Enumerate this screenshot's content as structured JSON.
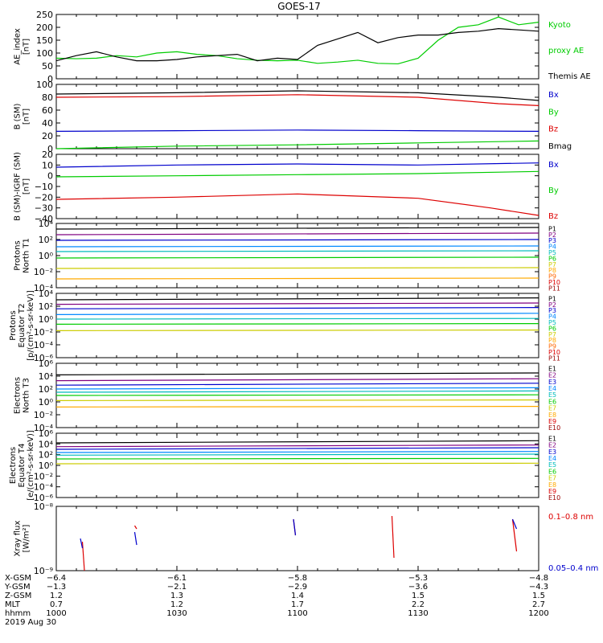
{
  "title": "GOES-17",
  "chart_data": [
    {
      "type": "line",
      "ylabel": [
        "AE_index",
        "[nT]"
      ],
      "scale": "linear",
      "ylim": [
        0,
        250
      ],
      "yticks": [
        "250",
        "200",
        "150",
        "100",
        "50",
        "0"
      ],
      "ytick_values": [
        250,
        200,
        150,
        100,
        50,
        0
      ],
      "series": [
        {
          "name": "Kyoto proxy AE",
          "color": "#00cc00",
          "x": [
            0,
            5,
            10,
            15,
            20,
            25,
            30,
            35,
            40,
            45,
            50,
            55,
            60,
            65,
            70,
            75,
            80,
            85,
            90,
            95,
            100,
            105,
            110,
            115,
            120
          ],
          "y": [
            80,
            78,
            80,
            90,
            85,
            100,
            105,
            95,
            90,
            78,
            72,
            70,
            72,
            60,
            65,
            72,
            60,
            58,
            80,
            150,
            200,
            210,
            240,
            210,
            220
          ]
        },
        {
          "name": "Themis AE",
          "color": "#000000",
          "x": [
            0,
            5,
            10,
            15,
            20,
            25,
            30,
            35,
            40,
            45,
            50,
            55,
            60,
            65,
            70,
            75,
            80,
            85,
            90,
            95,
            100,
            105,
            110,
            115,
            120
          ],
          "y": [
            70,
            90,
            105,
            85,
            70,
            70,
            75,
            85,
            90,
            95,
            70,
            80,
            75,
            130,
            155,
            180,
            140,
            160,
            170,
            170,
            180,
            185,
            195,
            190,
            185
          ]
        }
      ]
    },
    {
      "type": "line",
      "ylabel": [
        "B (SM)",
        "[nT]"
      ],
      "scale": "linear",
      "ylim": [
        0,
        100
      ],
      "yticks": [
        "100",
        "80",
        "60",
        "40",
        "20",
        "0"
      ],
      "ytick_values": [
        100,
        80,
        60,
        40,
        20,
        0
      ],
      "series": [
        {
          "name": "Bx",
          "color": "#0000cc",
          "x": [
            0,
            30,
            60,
            90,
            120
          ],
          "y": [
            27,
            28,
            29,
            28,
            27
          ]
        },
        {
          "name": "By",
          "color": "#00cc00",
          "x": [
            0,
            30,
            60,
            90,
            120
          ],
          "y": [
            0,
            4,
            6,
            9,
            12
          ]
        },
        {
          "name": "Bz",
          "color": "#dd0000",
          "x": [
            0,
            30,
            60,
            90,
            110,
            120
          ],
          "y": [
            80,
            81,
            84,
            80,
            70,
            67
          ]
        },
        {
          "name": "Bmag",
          "color": "#000000",
          "x": [
            0,
            30,
            60,
            90,
            110,
            120
          ],
          "y": [
            85,
            87,
            90,
            87,
            80,
            75
          ]
        }
      ]
    },
    {
      "type": "line",
      "ylabel": [
        "B (SM)-IGRF (SM)",
        "[nT]"
      ],
      "scale": "linear",
      "ylim": [
        -40,
        20
      ],
      "yticks": [
        "20",
        "10",
        "0",
        "−10",
        "−20",
        "−30",
        "−40"
      ],
      "ytick_values": [
        20,
        10,
        0,
        -10,
        -20,
        -30,
        -40
      ],
      "series": [
        {
          "name": "Bx",
          "color": "#0000cc",
          "x": [
            0,
            30,
            60,
            90,
            120
          ],
          "y": [
            8,
            10,
            11,
            10,
            12
          ]
        },
        {
          "name": "By",
          "color": "#00cc00",
          "x": [
            0,
            30,
            60,
            90,
            120
          ],
          "y": [
            -1,
            0,
            1,
            2,
            4
          ]
        },
        {
          "name": "Bz",
          "color": "#dd0000",
          "x": [
            0,
            30,
            60,
            90,
            108,
            120
          ],
          "y": [
            -22,
            -20,
            -17,
            -21,
            -30,
            -37
          ]
        }
      ]
    },
    {
      "type": "line",
      "ylabel": [
        "Protons",
        "North T1"
      ],
      "scale": "log",
      "ylim": [
        -4,
        4
      ],
      "yticks": [
        "10⁴",
        "10²",
        "10⁰",
        "10⁻²",
        "10⁻⁴"
      ],
      "ytick_values": [
        4,
        2,
        0,
        -2,
        -4
      ],
      "series": [
        {
          "name": "P1",
          "color": "#000000",
          "x": [
            0,
            120
          ],
          "y": [
            3.3,
            3.5
          ]
        },
        {
          "name": "P2",
          "color": "#800080",
          "x": [
            0,
            120
          ],
          "y": [
            2.6,
            2.8
          ]
        },
        {
          "name": "P3",
          "color": "#0000cc",
          "x": [
            0,
            120
          ],
          "y": [
            1.9,
            2.0
          ]
        },
        {
          "name": "P4",
          "color": "#0088ff",
          "x": [
            0,
            120
          ],
          "y": [
            1.1,
            1.2
          ]
        },
        {
          "name": "P5",
          "color": "#00bbbb",
          "x": [
            0,
            120
          ],
          "y": [
            0.5,
            0.6
          ]
        },
        {
          "name": "P6",
          "color": "#00cc00",
          "x": [
            0,
            120
          ],
          "y": [
            -0.3,
            -0.2
          ]
        },
        {
          "name": "P7",
          "color": "#cccc00",
          "x": [
            0,
            120
          ],
          "y": [
            -1.6,
            -1.5
          ]
        },
        {
          "name": "P8",
          "color": "#ffaa00",
          "x": [
            0,
            120
          ],
          "y": [
            -2.9,
            -2.8
          ]
        }
      ]
    },
    {
      "type": "line",
      "ylabel": [
        "Protons",
        "Equator T2",
        "[p/(cm²-s-sr-keV)]"
      ],
      "scale": "log",
      "ylim": [
        -6,
        4
      ],
      "yticks": [
        "10⁴",
        "10²",
        "10⁰",
        "10⁻²",
        "10⁻⁴",
        "10⁻⁶"
      ],
      "ytick_values": [
        4,
        2,
        0,
        -2,
        -4,
        -6
      ],
      "series": [
        {
          "name": "P1",
          "color": "#000000",
          "x": [
            0,
            120
          ],
          "y": [
            3.0,
            3.3
          ]
        },
        {
          "name": "P2",
          "color": "#800080",
          "x": [
            0,
            120
          ],
          "y": [
            2.3,
            2.5
          ]
        },
        {
          "name": "P3",
          "color": "#0000cc",
          "x": [
            0,
            120
          ],
          "y": [
            1.6,
            1.8
          ]
        },
        {
          "name": "P4",
          "color": "#0088ff",
          "x": [
            0,
            120
          ],
          "y": [
            0.7,
            0.9
          ]
        },
        {
          "name": "P5",
          "color": "#00bbbb",
          "x": [
            0,
            120
          ],
          "y": [
            0.0,
            0.1
          ]
        },
        {
          "name": "P6",
          "color": "#00cc00",
          "x": [
            0,
            120
          ],
          "y": [
            -0.8,
            -0.7
          ]
        },
        {
          "name": "P7",
          "color": "#cccc00",
          "x": [
            0,
            120
          ],
          "y": [
            -1.8,
            -1.7
          ]
        }
      ]
    },
    {
      "type": "line",
      "ylabel": [
        "Electrons",
        "North T3"
      ],
      "scale": "log",
      "ylim": [
        -4,
        6
      ],
      "yticks": [
        "10⁶",
        "10⁴",
        "10²",
        "10⁰",
        "10⁻²",
        "10⁻⁴"
      ],
      "ytick_values": [
        6,
        4,
        2,
        0,
        -2,
        -4
      ],
      "series": [
        {
          "name": "E1",
          "color": "#000000",
          "x": [
            0,
            120
          ],
          "y": [
            4.2,
            4.5
          ]
        },
        {
          "name": "E2",
          "color": "#800080",
          "x": [
            0,
            120
          ],
          "y": [
            3.3,
            3.6
          ]
        },
        {
          "name": "E3",
          "color": "#0000cc",
          "x": [
            0,
            120
          ],
          "y": [
            2.6,
            2.9
          ]
        },
        {
          "name": "E4",
          "color": "#0088ff",
          "x": [
            0,
            120
          ],
          "y": [
            2.0,
            2.2
          ]
        },
        {
          "name": "E5",
          "color": "#00bbbb",
          "x": [
            0,
            120
          ],
          "y": [
            1.5,
            1.7
          ]
        },
        {
          "name": "E6",
          "color": "#00cc00",
          "x": [
            0,
            120
          ],
          "y": [
            1.0,
            1.1
          ]
        },
        {
          "name": "E7",
          "color": "#cccc00",
          "x": [
            0,
            120
          ],
          "y": [
            0.2,
            0.3
          ]
        },
        {
          "name": "E8",
          "color": "#ffaa00",
          "x": [
            0,
            120
          ],
          "y": [
            -0.8,
            -0.7
          ]
        }
      ]
    },
    {
      "type": "line",
      "ylabel": [
        "Electrons",
        "Equator T4",
        "[e/(cm²-s-sr-keV)]"
      ],
      "scale": "log",
      "ylim": [
        -6,
        6
      ],
      "yticks": [
        "10⁶",
        "10⁴",
        "10²",
        "10⁰",
        "10⁻²",
        "10⁻⁴",
        "10⁻⁶"
      ],
      "ytick_values": [
        6,
        4,
        2,
        0,
        -2,
        -4,
        -6
      ],
      "series": [
        {
          "name": "E1",
          "color": "#000000",
          "x": [
            0,
            120
          ],
          "y": [
            4.2,
            4.6
          ]
        },
        {
          "name": "E2",
          "color": "#800080",
          "x": [
            0,
            120
          ],
          "y": [
            3.5,
            3.8
          ]
        },
        {
          "name": "E3",
          "color": "#0000cc",
          "x": [
            0,
            120
          ],
          "y": [
            3.0,
            3.3
          ]
        },
        {
          "name": "E4",
          "color": "#0088ff",
          "x": [
            0,
            120
          ],
          "y": [
            2.4,
            2.6
          ]
        },
        {
          "name": "E5",
          "color": "#00bbbb",
          "x": [
            0,
            120
          ],
          "y": [
            1.9,
            2.1
          ]
        },
        {
          "name": "E6",
          "color": "#00cc00",
          "x": [
            0,
            120
          ],
          "y": [
            1.2,
            1.3
          ]
        },
        {
          "name": "E7",
          "color": "#cccc00",
          "x": [
            0,
            120
          ],
          "y": [
            0.3,
            0.4
          ]
        }
      ]
    },
    {
      "type": "line",
      "ylabel": [
        "Xray flux",
        "[W/m²]"
      ],
      "scale": "log",
      "ylim": [
        -9,
        -8
      ],
      "yticks": [
        "10⁻⁸",
        "10⁻⁹"
      ],
      "ytick_values": [
        -8,
        -9
      ],
      "series": [
        {
          "name": "0.1–0.8 nm",
          "color": "#dd0000",
          "x": [
            6.5,
            7.0,
            19.5,
            20.0,
            59.0,
            59.5,
            83.5,
            84.0,
            113.5,
            114.5
          ],
          "y": [
            -8.55,
            -9.0,
            -8.3,
            -8.35,
            -8.2,
            -8.45,
            -8.15,
            -8.8,
            -8.2,
            -8.7
          ]
        },
        {
          "name": "0.05–0.4 nm",
          "color": "#0000cc",
          "x": [
            6.0,
            6.5,
            19.5,
            20.0,
            59.0,
            59.5,
            113.5,
            114.5
          ],
          "y": [
            -8.5,
            -8.65,
            -8.4,
            -8.6,
            -8.2,
            -8.45,
            -8.2,
            -8.35
          ]
        }
      ]
    }
  ],
  "right_labels": [
    [
      {
        "text": "Kyoto",
        "color": "#00cc00"
      },
      {
        "text": "proxy AE",
        "color": "#00cc00"
      },
      {
        "text": "Themis AE",
        "color": "#000000"
      }
    ],
    [
      {
        "text": "Bx",
        "color": "#0000cc"
      },
      {
        "text": "By",
        "color": "#00cc00"
      },
      {
        "text": "Bz",
        "color": "#dd0000"
      },
      {
        "text": "Bmag",
        "color": "#000000"
      }
    ],
    [
      {
        "text": "Bx",
        "color": "#0000cc"
      },
      {
        "text": "By",
        "color": "#00cc00"
      },
      {
        "text": "Bz",
        "color": "#dd0000"
      }
    ],
    [
      {
        "text": "P1",
        "color": "#000000"
      },
      {
        "text": "P2",
        "color": "#800080"
      },
      {
        "text": "P3",
        "color": "#0000cc"
      },
      {
        "text": "P4",
        "color": "#0088ff"
      },
      {
        "text": "P5",
        "color": "#00bbbb"
      },
      {
        "text": "P6",
        "color": "#00cc00"
      },
      {
        "text": "P7",
        "color": "#cccc00"
      },
      {
        "text": "P8",
        "color": "#ffaa00"
      },
      {
        "text": "P9",
        "color": "#ff6600"
      },
      {
        "text": "P10",
        "color": "#dd0000"
      },
      {
        "text": "P11",
        "color": "#990000"
      }
    ],
    [
      {
        "text": "P1",
        "color": "#000000"
      },
      {
        "text": "P2",
        "color": "#800080"
      },
      {
        "text": "P3",
        "color": "#0000cc"
      },
      {
        "text": "P4",
        "color": "#0088ff"
      },
      {
        "text": "P5",
        "color": "#00bbbb"
      },
      {
        "text": "P6",
        "color": "#00cc00"
      },
      {
        "text": "P7",
        "color": "#cccc00"
      },
      {
        "text": "P8",
        "color": "#ffaa00"
      },
      {
        "text": "P9",
        "color": "#ff6600"
      },
      {
        "text": "P10",
        "color": "#dd0000"
      },
      {
        "text": "P11",
        "color": "#990000"
      }
    ],
    [
      {
        "text": "E1",
        "color": "#000000"
      },
      {
        "text": "E2",
        "color": "#800080"
      },
      {
        "text": "E3",
        "color": "#0000cc"
      },
      {
        "text": "E4",
        "color": "#0088ff"
      },
      {
        "text": "E5",
        "color": "#00bbbb"
      },
      {
        "text": "E6",
        "color": "#00cc00"
      },
      {
        "text": "E7",
        "color": "#cccc00"
      },
      {
        "text": "E8",
        "color": "#ffaa00"
      },
      {
        "text": "E9",
        "color": "#dd0000"
      },
      {
        "text": "E10",
        "color": "#990000"
      }
    ],
    [
      {
        "text": "E1",
        "color": "#000000"
      },
      {
        "text": "E2",
        "color": "#800080"
      },
      {
        "text": "E3",
        "color": "#0000cc"
      },
      {
        "text": "E4",
        "color": "#0088ff"
      },
      {
        "text": "E5",
        "color": "#00bbbb"
      },
      {
        "text": "E6",
        "color": "#00cc00"
      },
      {
        "text": "E7",
        "color": "#cccc00"
      },
      {
        "text": "E8",
        "color": "#ffaa00"
      },
      {
        "text": "E9",
        "color": "#dd0000"
      },
      {
        "text": "E10",
        "color": "#990000"
      }
    ],
    [
      {
        "text": "0.1–0.8 nm",
        "color": "#dd0000"
      },
      {
        "text": "0.05–0.4 nm",
        "color": "#0000cc"
      }
    ]
  ],
  "x_axis": {
    "row_labels": [
      "X-GSM",
      "Y-GSM",
      "Z-GSM",
      "MLT",
      "hhmm"
    ],
    "date": "2019 Aug 30",
    "ticks": [
      {
        "minute": 0,
        "values": [
          "−6.4",
          "−1.3",
          "1.2",
          "0.7",
          "1000"
        ]
      },
      {
        "minute": 30,
        "values": [
          "−6.1",
          "−2.1",
          "1.3",
          "1.2",
          "1030"
        ]
      },
      {
        "minute": 60,
        "values": [
          "−5.8",
          "−2.9",
          "1.4",
          "1.7",
          "1100"
        ]
      },
      {
        "minute": 90,
        "values": [
          "−5.3",
          "−3.6",
          "1.5",
          "2.2",
          "1130"
        ]
      },
      {
        "minute": 120,
        "values": [
          "−4.8",
          "−4.3",
          "1.5",
          "2.7",
          "1200"
        ]
      }
    ]
  }
}
